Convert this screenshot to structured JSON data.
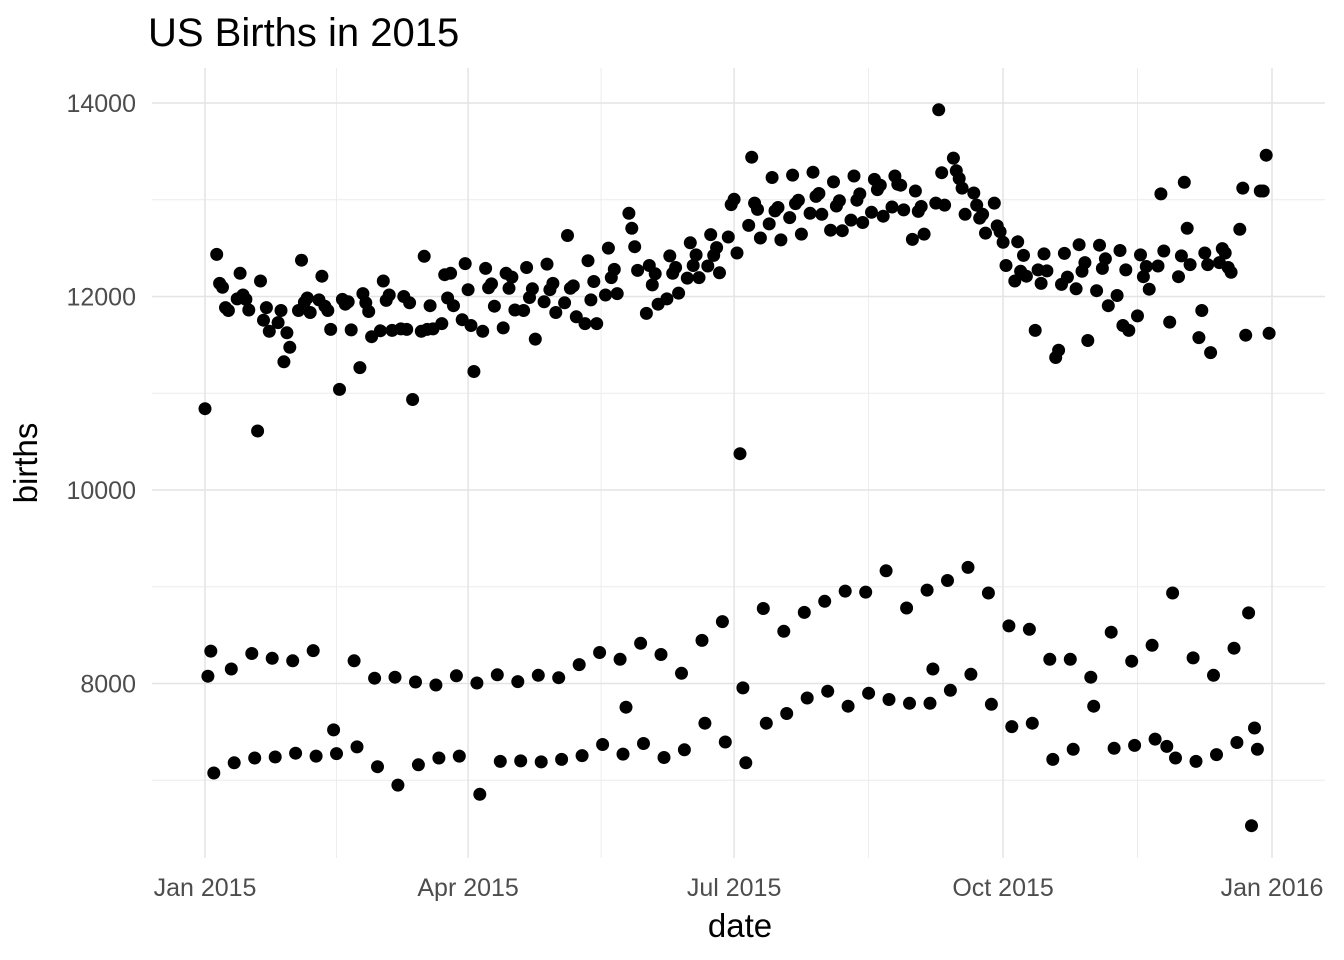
{
  "title": "US Births in 2015",
  "chart_data": {
    "type": "scatter",
    "title": "US Births in 2015",
    "xlabel": "date",
    "ylabel": "births",
    "legend": "none",
    "grid": true,
    "point_color": "#000000",
    "major_grid_color": "#E4E4E4",
    "minor_grid_color": "#EBEBEB",
    "tick_text_color": "#4D4D4D",
    "background_color": "#FFFFFF",
    "x_start_date": "2015-01-01",
    "x_ticks": [
      {
        "day": 0,
        "label": "Jan 2015"
      },
      {
        "day": 90,
        "label": "Apr 2015"
      },
      {
        "day": 181,
        "label": "Jul 2015"
      },
      {
        "day": 273,
        "label": "Oct 2015"
      },
      {
        "day": 365,
        "label": "Jan 2016"
      }
    ],
    "y_ticks": [
      {
        "value": 8000,
        "label": "8000"
      },
      {
        "value": 10000,
        "label": "10000"
      },
      {
        "value": 12000,
        "label": "12000"
      },
      {
        "value": 14000,
        "label": "14000"
      }
    ],
    "y_minor": [
      7000,
      9000,
      11000,
      13000
    ],
    "y_domain": [
      6300,
      14340
    ],
    "values": [
      10840,
      8075,
      8335,
      7075,
      12435,
      12135,
      12095,
      11885,
      11855,
      8150,
      7180,
      11975,
      12240,
      12015,
      11970,
      11860,
      8310,
      7230,
      10610,
      12160,
      11755,
      11885,
      11640,
      8260,
      7240,
      11730,
      11855,
      11325,
      11625,
      11475,
      8235,
      7280,
      11855,
      12375,
      11940,
      11985,
      11835,
      8340,
      7250,
      11965,
      12210,
      11900,
      11855,
      11660,
      7520,
      7275,
      11040,
      11970,
      11920,
      11945,
      11655,
      8235,
      7345,
      11265,
      12030,
      11935,
      11845,
      11585,
      8055,
      7140,
      11645,
      12160,
      11960,
      12015,
      11650,
      8065,
      6950,
      11665,
      12000,
      11660,
      11935,
      10935,
      8015,
      7160,
      11640,
      12415,
      11660,
      11905,
      11665,
      7985,
      7230,
      11720,
      12225,
      11985,
      12240,
      11905,
      8080,
      7250,
      11760,
      12340,
      12070,
      11700,
      11225,
      8005,
      6855,
      11640,
      12290,
      12090,
      12130,
      11900,
      8090,
      7195,
      11675,
      12240,
      12085,
      12200,
      11860,
      8020,
      7200,
      11855,
      12300,
      11990,
      12080,
      11560,
      8085,
      7190,
      11945,
      12335,
      12070,
      12135,
      11835,
      8060,
      7215,
      11935,
      12630,
      12085,
      12110,
      11790,
      8195,
      7255,
      11720,
      12370,
      11965,
      12155,
      11720,
      8320,
      7370,
      12015,
      12500,
      12195,
      12280,
      12030,
      8250,
      7270,
      7755,
      12860,
      12705,
      12515,
      12270,
      8415,
      7380,
      11825,
      12320,
      12120,
      12235,
      11920,
      8300,
      7235,
      11975,
      12420,
      12240,
      12300,
      12035,
      8105,
      7315,
      12190,
      12555,
      12320,
      12430,
      12195,
      8445,
      7590,
      12315,
      12640,
      12425,
      12505,
      12245,
      8640,
      7395,
      12615,
      12950,
      13005,
      12450,
      10375,
      7955,
      7180,
      12735,
      13440,
      12965,
      12900,
      12605,
      8775,
      7590,
      12750,
      13230,
      12885,
      12920,
      12585,
      8540,
      7690,
      12815,
      13255,
      12960,
      12995,
      12645,
      8735,
      7850,
      12860,
      13285,
      13035,
      13065,
      12850,
      8850,
      7920,
      12685,
      13185,
      12935,
      12990,
      12680,
      8955,
      7765,
      12790,
      13245,
      12995,
      13060,
      12765,
      8945,
      7900,
      12870,
      13210,
      13105,
      13150,
      12830,
      9165,
      7835,
      12925,
      13245,
      13160,
      13150,
      12895,
      8780,
      7795,
      12590,
      13090,
      12880,
      12930,
      12645,
      8965,
      7795,
      8150,
      12965,
      13930,
      13280,
      12945,
      9065,
      7930,
      13430,
      13300,
      13220,
      13120,
      12850,
      9200,
      8095,
      13070,
      12945,
      12810,
      12850,
      12655,
      8935,
      7785,
      12965,
      12730,
      12670,
      12560,
      12320,
      8595,
      7555,
      12160,
      12565,
      12260,
      12425,
      12210,
      8560,
      7590,
      11650,
      12275,
      12135,
      12440,
      12265,
      8250,
      7215,
      11370,
      11445,
      12125,
      12445,
      12200,
      8250,
      7320,
      12080,
      12535,
      12260,
      12350,
      11545,
      8065,
      7765,
      12060,
      12530,
      12290,
      12390,
      11905,
      8530,
      7330,
      12010,
      12475,
      11700,
      12275,
      11650,
      8230,
      7360,
      11800,
      12430,
      12205,
      12310,
      12075,
      8395,
      7425,
      12315,
      13060,
      12470,
      7350,
      11735,
      8935,
      7230,
      12205,
      12420,
      13180,
      12705,
      12330,
      8265,
      7195,
      11575,
      11855,
      12450,
      12330,
      11420,
      8085,
      7265,
      12350,
      12495,
      12450,
      12300,
      12250,
      8365,
      7390,
      12695,
      13120,
      11600,
      8730,
      6530,
      7540,
      7320,
      13090,
      13090,
      13460,
      11620
    ]
  }
}
